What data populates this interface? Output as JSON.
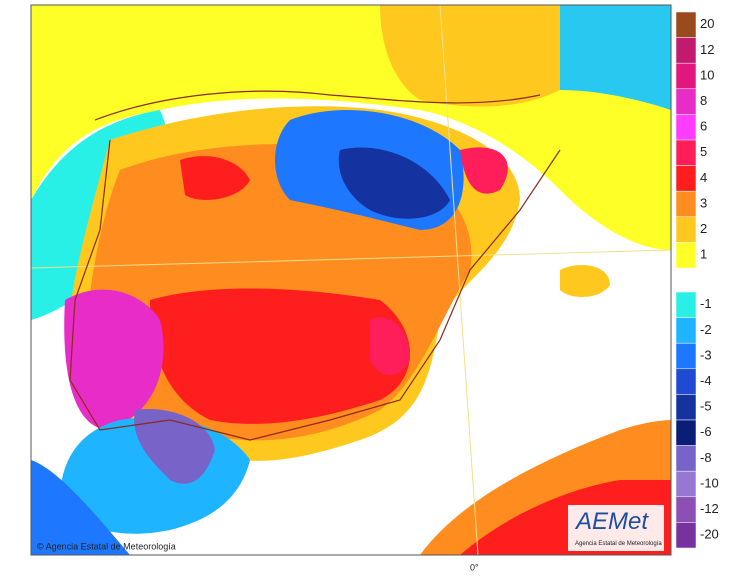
{
  "map": {
    "legend_positive": [
      {
        "label": "20",
        "color": "#9a4a1c"
      },
      {
        "label": "12",
        "color": "#c21a6e"
      },
      {
        "label": "10",
        "color": "#e0187e"
      },
      {
        "label": "8",
        "color": "#e82cc8"
      },
      {
        "label": "6",
        "color": "#ff3cff"
      },
      {
        "label": "5",
        "color": "#ff1e5a"
      },
      {
        "label": "4",
        "color": "#ff1e1e"
      },
      {
        "label": "3",
        "color": "#ff8c1e"
      },
      {
        "label": "2",
        "color": "#ffc81e"
      },
      {
        "label": "1",
        "color": "#ffff28"
      }
    ],
    "legend_negative": [
      {
        "label": "-1",
        "color": "#28f0e6"
      },
      {
        "label": "-2",
        "color": "#1eb4ff"
      },
      {
        "label": "-3",
        "color": "#1e78ff"
      },
      {
        "label": "-4",
        "color": "#1e4bd2"
      },
      {
        "label": "-5",
        "color": "#1432a0"
      },
      {
        "label": "-6",
        "color": "#0a1e78"
      },
      {
        "label": "-8",
        "color": "#7864c8"
      },
      {
        "label": "-10",
        "color": "#9678d2"
      },
      {
        "label": "-12",
        "color": "#8c50b4"
      },
      {
        "label": "-20",
        "color": "#7832a0"
      }
    ],
    "meridian_label": "0°",
    "copyright": "© Agencia Estatal de Meteorología",
    "logo": {
      "name": "AEMet",
      "subtitle": "Agencia Estatal de Meteorología"
    }
  }
}
